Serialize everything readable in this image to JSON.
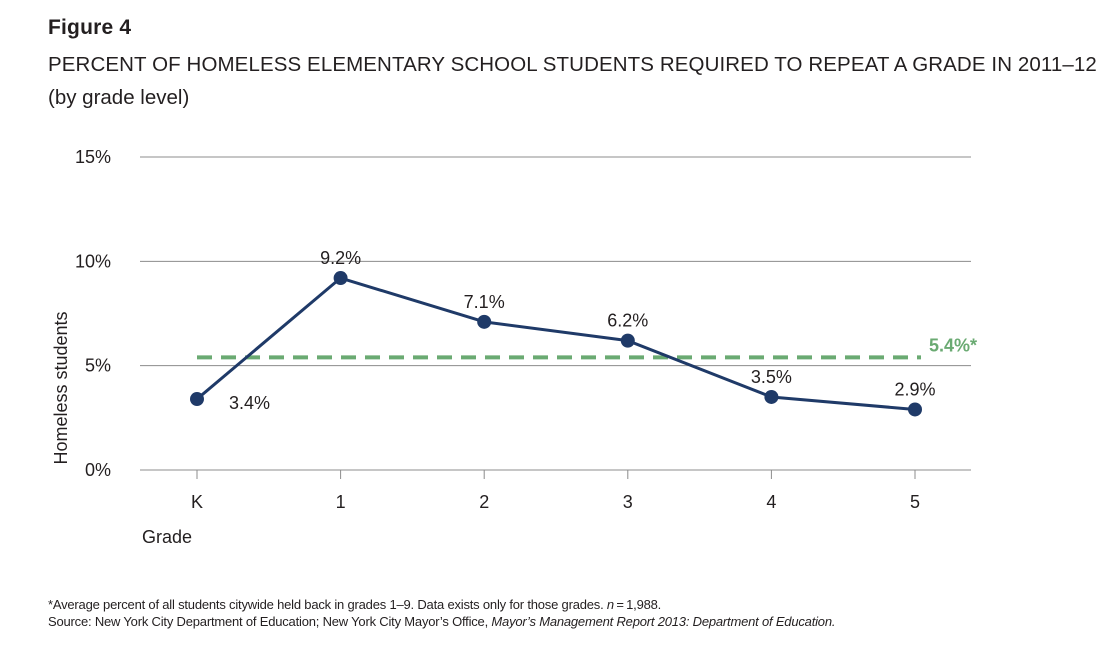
{
  "figure": {
    "label": "Figure 4",
    "title": "PERCENT OF HOMELESS ELEMENTARY SCHOOL STUDENTS REQUIRED TO REPEAT A GRADE IN 2011–12",
    "subtitle": "(by grade level)"
  },
  "footnotes": {
    "note_prefix": "*Average percent of all students citywide held back in grades 1–9. Data exists only for those grades. ",
    "note_n": "n",
    "note_suffix": " = 1,988.",
    "source_prefix": "Source: New York City Department of Education; New York City Mayor’s Office, ",
    "source_italic": "Mayor’s Management Report 2013: Department of Education."
  },
  "chart_data": {
    "type": "line",
    "title": "PERCENT OF HOMELESS ELEMENTARY SCHOOL STUDENTS REQUIRED TO REPEAT A GRADE IN 2011–12",
    "subtitle": "(by grade level)",
    "xlabel": "Grade",
    "ylabel": "Homeless students",
    "categories": [
      "K",
      "1",
      "2",
      "3",
      "4",
      "5"
    ],
    "series": [
      {
        "name": "Homeless students",
        "values": [
          3.4,
          9.2,
          7.1,
          6.2,
          3.5,
          2.9
        ],
        "labels": [
          "3.4%",
          "9.2%",
          "7.1%",
          "6.2%",
          "3.5%",
          "2.9%"
        ],
        "color": "#1f3a68"
      }
    ],
    "reference_line": {
      "value": 5.4,
      "label": "5.4%*",
      "style": "dashed",
      "color": "#6aaa72"
    },
    "ylim": [
      0,
      15
    ],
    "yticks": [
      0,
      5,
      10,
      15
    ],
    "ytick_labels": [
      "0%",
      "5%",
      "10%",
      "15%"
    ],
    "grid": true,
    "gridline_color": "#8c8c8c",
    "text_color": "#231f20"
  }
}
